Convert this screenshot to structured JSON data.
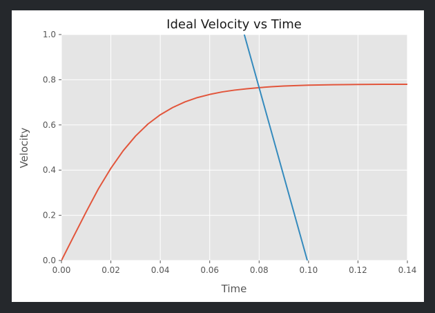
{
  "colors": {
    "window_background": "#25282c",
    "figure_background": "#ffffff",
    "plot_background": "#e5e5e5",
    "grid": "#ffffff"
  },
  "chart_data": {
    "type": "line",
    "title": "Ideal Velocity vs Time",
    "xlabel": "Time",
    "ylabel": "Velocity",
    "xlim": [
      0.0,
      0.14
    ],
    "ylim": [
      0.0,
      1.0
    ],
    "grid": true,
    "legend": "none",
    "xticks": [
      "0.00",
      "0.02",
      "0.04",
      "0.06",
      "0.08",
      "0.10",
      "0.12",
      "0.14"
    ],
    "yticks": [
      "0.0",
      "0.2",
      "0.4",
      "0.6",
      "0.8",
      "1.0"
    ],
    "series": [
      {
        "color": "#e2553b",
        "x": [
          0.0,
          0.005,
          0.01,
          0.015,
          0.02,
          0.025,
          0.03,
          0.035,
          0.04,
          0.045,
          0.05,
          0.055,
          0.06,
          0.065,
          0.07,
          0.075,
          0.08,
          0.085,
          0.09,
          0.095,
          0.1,
          0.11,
          0.12,
          0.13,
          0.14
        ],
        "y": [
          0.0,
          0.108,
          0.215,
          0.318,
          0.408,
          0.486,
          0.551,
          0.604,
          0.645,
          0.677,
          0.702,
          0.721,
          0.735,
          0.746,
          0.754,
          0.76,
          0.765,
          0.769,
          0.772,
          0.774,
          0.776,
          0.778,
          0.779,
          0.78,
          0.78
        ]
      },
      {
        "color": "#348abd",
        "x": [
          0.074,
          0.0995
        ],
        "y": [
          1.0,
          0.0
        ]
      }
    ]
  }
}
